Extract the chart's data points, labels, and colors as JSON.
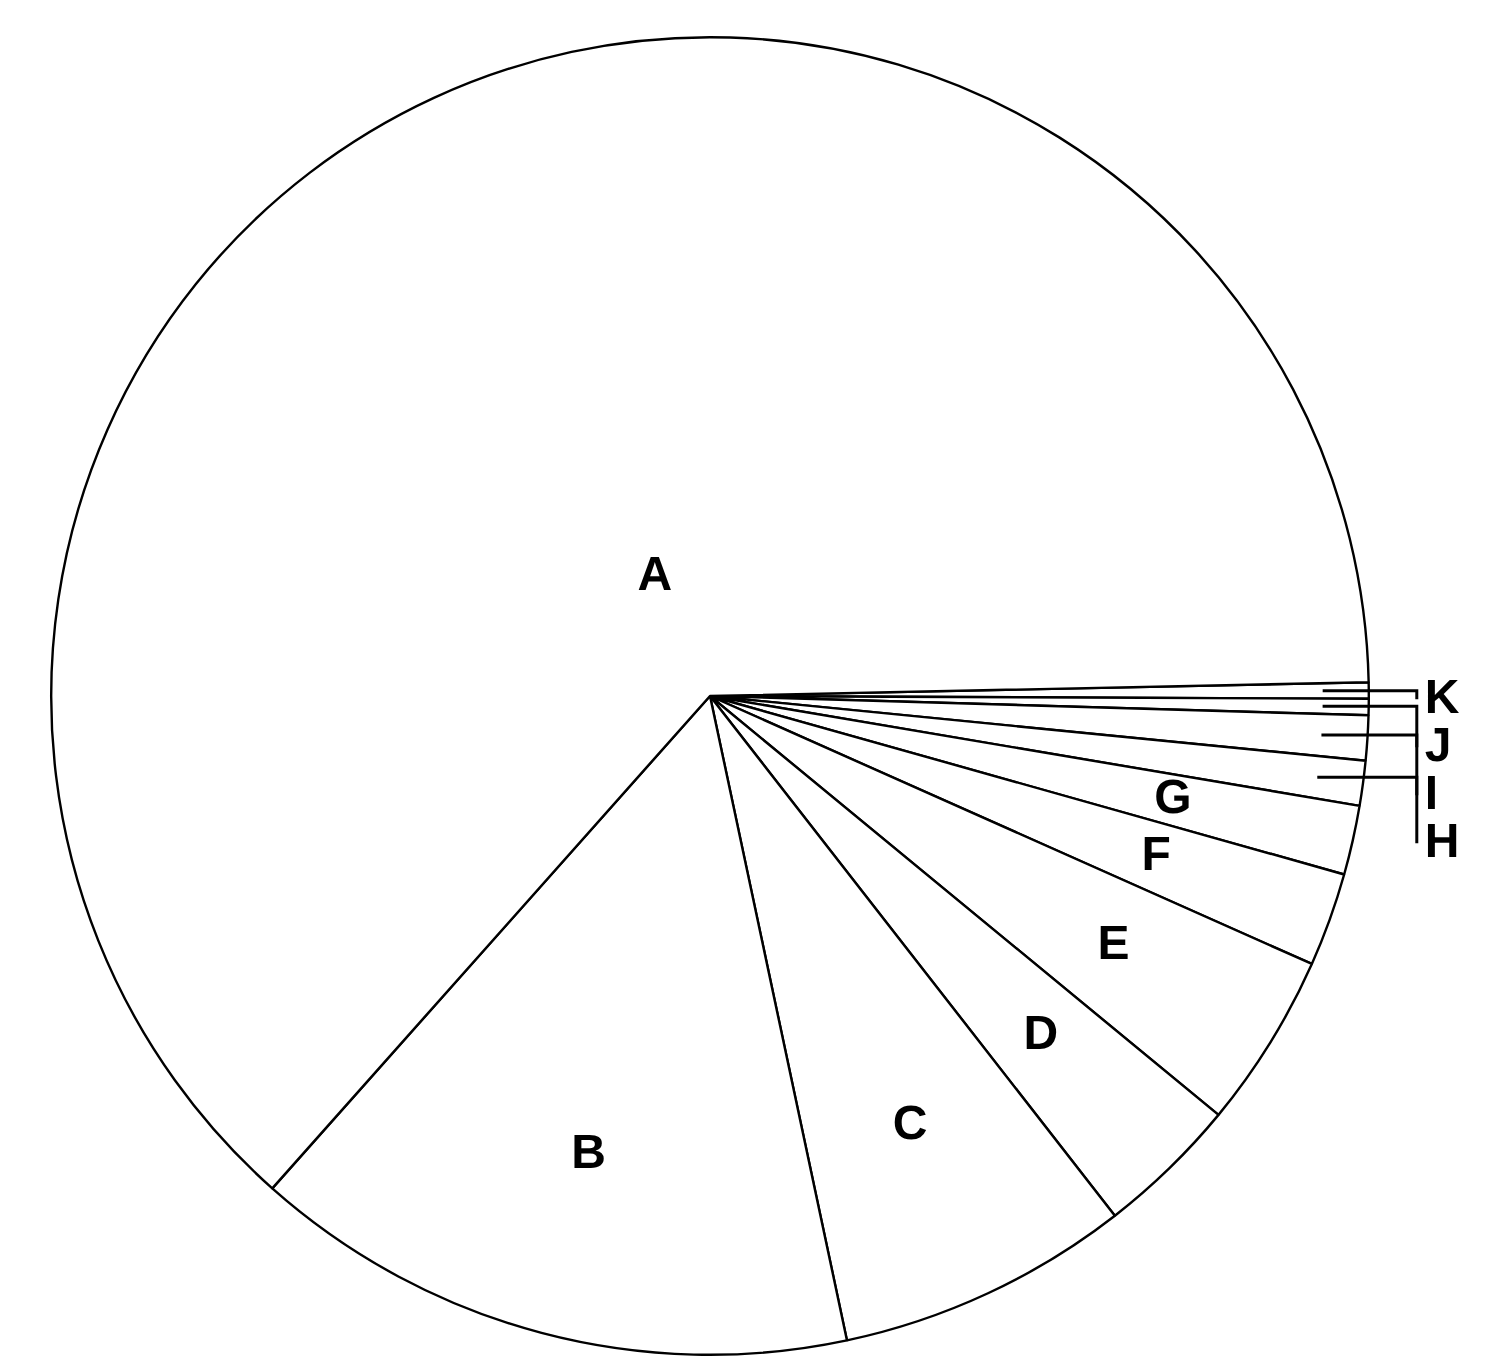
{
  "chart_data": {
    "type": "pie",
    "categories": [
      "A",
      "B",
      "C",
      "D",
      "E",
      "F",
      "G",
      "H",
      "I",
      "J",
      "K"
    ],
    "values": [
      63.1,
      14.9,
      7.2,
      3.5,
      4.3,
      2.3,
      1.7,
      1.1,
      1.1,
      0.4,
      0.4
    ],
    "colors": [
      "#ffffff",
      "#ffffff",
      "#ffffff",
      "#ffffff",
      "#ffffff",
      "#ffffff",
      "#ffffff",
      "#ffffff",
      "#ffffff",
      "#ffffff",
      "#ffffff"
    ],
    "legend": false
  }
}
